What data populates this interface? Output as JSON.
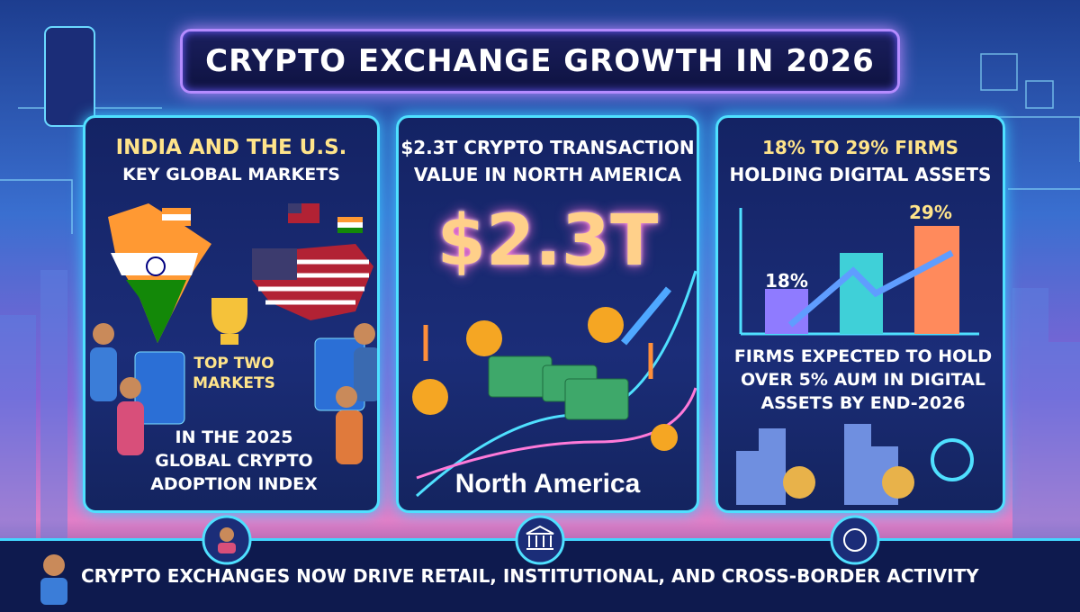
{
  "header": {
    "title": "CRYPTO EXCHANGE GROWTH IN 2026"
  },
  "panels": [
    {
      "heading": [
        "INDIA AND THE U.S.",
        "KEY GLOBAL MARKETS"
      ],
      "badge": [
        "TOP TWO",
        "MARKETS"
      ],
      "caption": [
        "IN THE 2025",
        "GLOBAL CRYPTO",
        "ADOPTION INDEX"
      ]
    },
    {
      "heading": [
        "$2.3T CRYPTO TRANSACTION",
        "VALUE IN NORTH AMERICA"
      ],
      "big": "$2.3T",
      "region": "North America"
    },
    {
      "heading": [
        "18% TO 29% FIRMS",
        "HOLDING DIGITAL ASSETS"
      ],
      "bar_labels": [
        "18%",
        "29%"
      ],
      "caption": [
        "FIRMS EXPECTED TO HOLD",
        "OVER 5% AUM IN DIGITAL",
        "ASSETS BY END-2026"
      ]
    }
  ],
  "footer": {
    "text": "CRYPTO EXCHANGES NOW DRIVE RETAIL, INSTITUTIONAL, AND CROSS-BORDER ACTIVITY"
  }
}
